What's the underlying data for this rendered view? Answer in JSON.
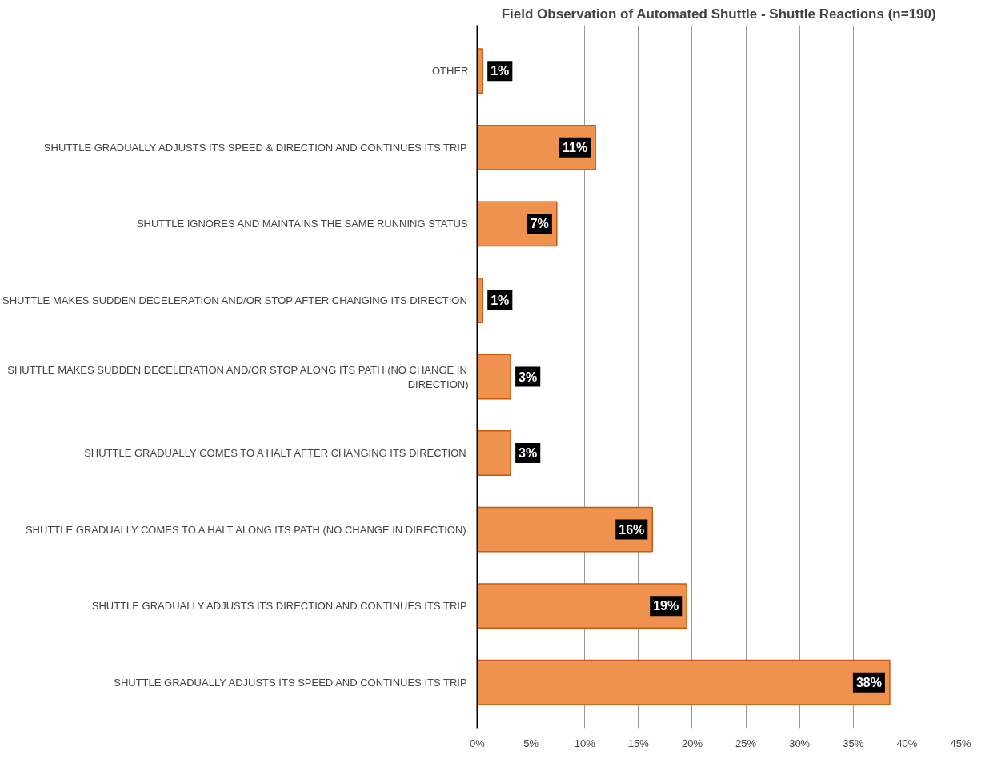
{
  "chart_data": {
    "type": "bar",
    "orientation": "horizontal",
    "title": "Field Observation of Automated Shuttle - Shuttle Reactions (n=190)",
    "categories": [
      "OTHER",
      "SHUTTLE GRADUALLY ADJUSTS ITS SPEED & DIRECTION AND CONTINUES ITS TRIP",
      "SHUTTLE IGNORES AND MAINTAINS THE SAME RUNNING STATUS",
      "SHUTTLE MAKES SUDDEN DECELERATION AND/OR STOP AFTER CHANGING ITS DIRECTION",
      "SHUTTLE MAKES SUDDEN DECELERATION AND/OR STOP ALONG ITS PATH (NO CHANGE IN DIRECTION)",
      "SHUTTLE GRADUALLY COMES TO A HALT AFTER CHANGING ITS DIRECTION",
      "SHUTTLE GRADUALLY COMES TO A HALT ALONG ITS PATH (NO CHANGE IN DIRECTION)",
      "SHUTTLE GRADUALLY ADJUSTS ITS DIRECTION AND CONTINUES ITS TRIP",
      "SHUTTLE GRADUALLY ADJUSTS ITS SPEED AND CONTINUES ITS TRIP"
    ],
    "values": [
      0.5,
      11,
      7.4,
      0.5,
      3.1,
      3.1,
      16.3,
      19.5,
      38.4
    ],
    "value_labels": [
      "1%",
      "11%",
      "7%",
      "1%",
      "3%",
      "3%",
      "16%",
      "19%",
      "38%"
    ],
    "color": "#f0924f",
    "xlim": [
      0,
      45
    ],
    "xticks": [
      {
        "value": 0,
        "label": "0%"
      },
      {
        "value": 5,
        "label": "5%"
      },
      {
        "value": 10,
        "label": "10%"
      },
      {
        "value": 15,
        "label": "15%"
      },
      {
        "value": 20,
        "label": "20%"
      },
      {
        "value": 25,
        "label": "25%"
      },
      {
        "value": 30,
        "label": "30%"
      },
      {
        "value": 35,
        "label": "35%"
      },
      {
        "value": 40,
        "label": "40%"
      },
      {
        "value": 45,
        "label": "45%"
      }
    ],
    "grid": "x"
  }
}
